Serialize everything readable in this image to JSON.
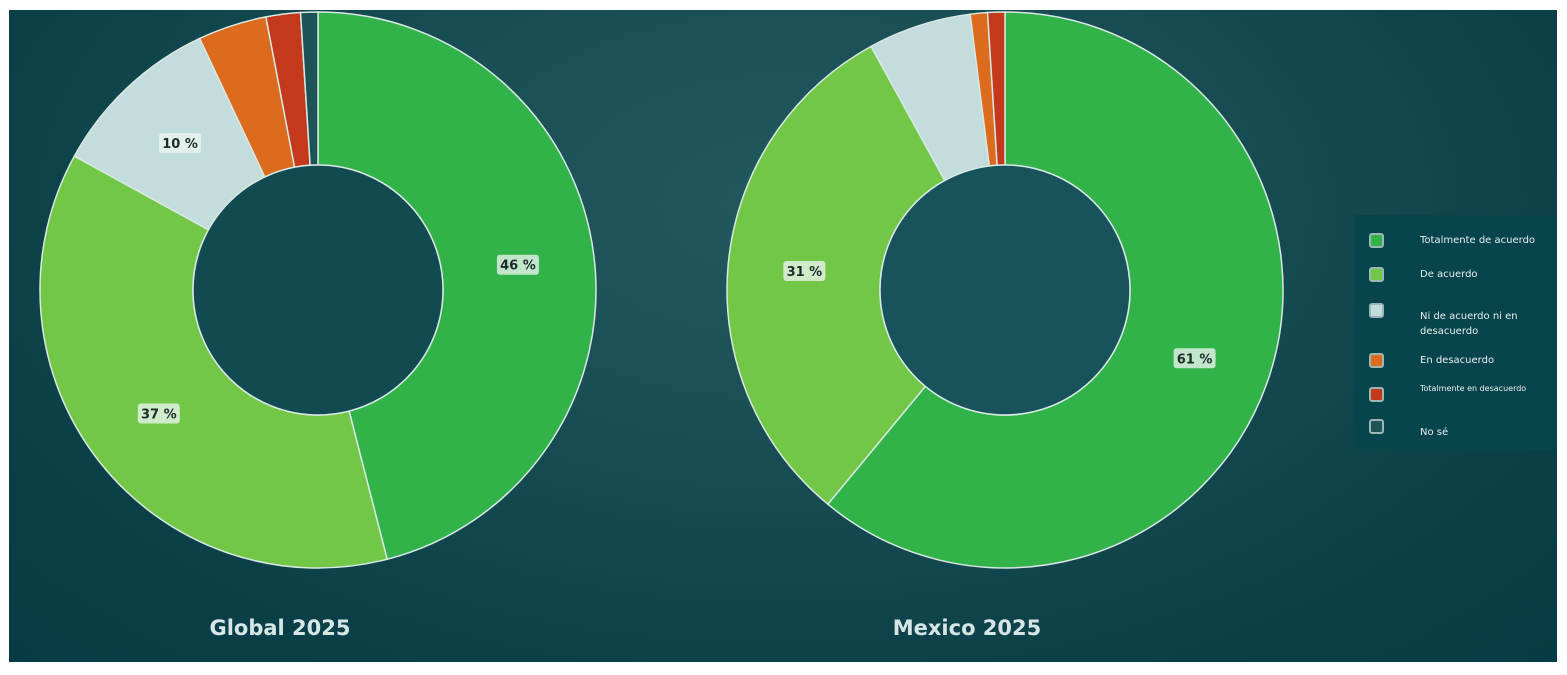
{
  "chart_data": [
    {
      "type": "pie",
      "variant": "donut",
      "title": "Global 2025",
      "categories": [
        "Totalmente de acuerdo",
        "De acuerdo",
        "Ni de acuerdo ni en desacuerdo",
        "En desacuerdo",
        "Totalmente en desacuerdo",
        "No sé"
      ],
      "values": [
        46,
        37,
        10,
        4,
        2,
        1
      ],
      "labels": [
        "46 %",
        "37 %",
        "10 %",
        "",
        "",
        ""
      ]
    },
    {
      "type": "pie",
      "variant": "donut",
      "title": "Mexico 2025",
      "categories": [
        "Totalmente de acuerdo",
        "De acuerdo",
        "Ni de acuerdo ni en desacuerdo",
        "En desacuerdo",
        "Totalmente en desacuerdo",
        "No sé"
      ],
      "values": [
        61,
        31,
        6,
        1,
        1,
        0
      ],
      "labels": [
        "61 %",
        "31 %",
        "",
        "",
        "",
        ""
      ]
    }
  ],
  "legend": {
    "placement": "right",
    "items": [
      {
        "label": "Totalmente de acuerdo",
        "color": "#31b34a"
      },
      {
        "label": "De acuerdo",
        "color": "#72c846"
      },
      {
        "label": "Ni de acuerdo ni en desacuerdo",
        "color": "#c3dcdc"
      },
      {
        "label": "En desacuerdo",
        "color": "#dc6b1e"
      },
      {
        "label": "Totalmente en desacuerdo",
        "color": "#c4391b"
      },
      {
        "label": "No sé",
        "color": "#1d5257"
      }
    ]
  }
}
